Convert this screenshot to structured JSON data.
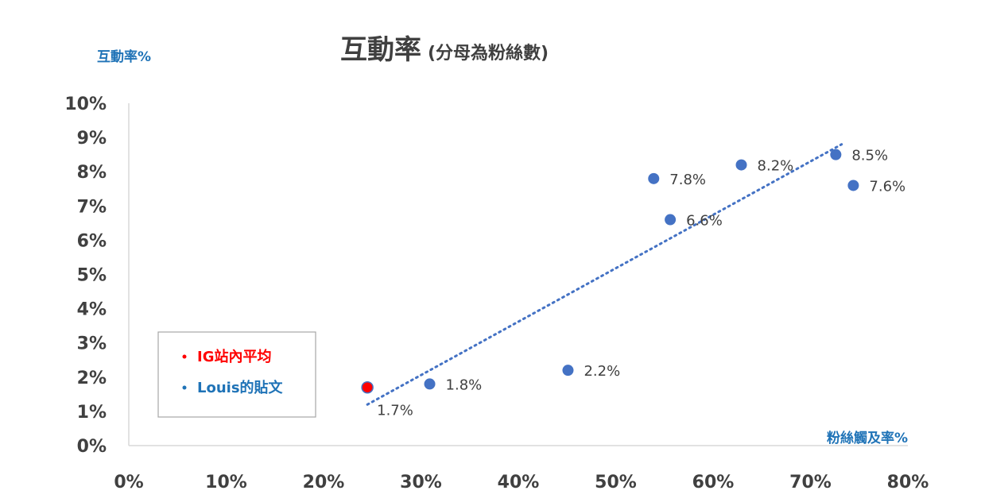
{
  "chart_data": {
    "type": "scatter",
    "title": "互動率",
    "subtitle": "(分母為粉絲數)",
    "xlabel": "粉絲觸及率%",
    "ylabel": "互動率%",
    "xlim": [
      0,
      80
    ],
    "ylim": [
      0,
      10
    ],
    "x_ticks": [
      0,
      10,
      20,
      30,
      40,
      50,
      60,
      70,
      80
    ],
    "y_ticks": [
      0,
      1,
      2,
      3,
      4,
      5,
      6,
      7,
      8,
      9,
      10
    ],
    "x_tick_labels": [
      "0%",
      "10%",
      "20%",
      "30%",
      "40%",
      "50%",
      "60%",
      "70%",
      "80%"
    ],
    "y_tick_labels": [
      "0%",
      "1%",
      "2%",
      "3%",
      "4%",
      "5%",
      "6%",
      "7%",
      "8%",
      "9%",
      "10%"
    ],
    "grid": false,
    "series": [
      {
        "name": "IG站內平均",
        "color": "#ff0000",
        "points": [
          {
            "x": 24.5,
            "y": 1.7,
            "label": "1.7%"
          }
        ]
      },
      {
        "name": "Louis的貼文",
        "color": "#4472c4",
        "points": [
          {
            "x": 30.9,
            "y": 1.8,
            "label": "1.8%"
          },
          {
            "x": 45.1,
            "y": 2.2,
            "label": "2.2%"
          },
          {
            "x": 53.9,
            "y": 7.8,
            "label": "7.8%"
          },
          {
            "x": 55.6,
            "y": 6.6,
            "label": "6.6%"
          },
          {
            "x": 62.9,
            "y": 8.2,
            "label": "8.2%"
          },
          {
            "x": 72.6,
            "y": 8.5,
            "label": "8.5%"
          },
          {
            "x": 74.4,
            "y": 7.6,
            "label": "7.6%"
          }
        ]
      }
    ],
    "trendline": {
      "type": "linear",
      "style": "dotted",
      "color": "#4472c4",
      "x_range": [
        24.5,
        73.2
      ],
      "y_range": [
        1.2,
        8.8
      ]
    },
    "legend": {
      "position": "bottom-left",
      "items": [
        {
          "label": "IG站內平均",
          "color": "#ff0000"
        },
        {
          "label": "Louis的貼文",
          "color": "#1f73b7"
        }
      ]
    }
  }
}
